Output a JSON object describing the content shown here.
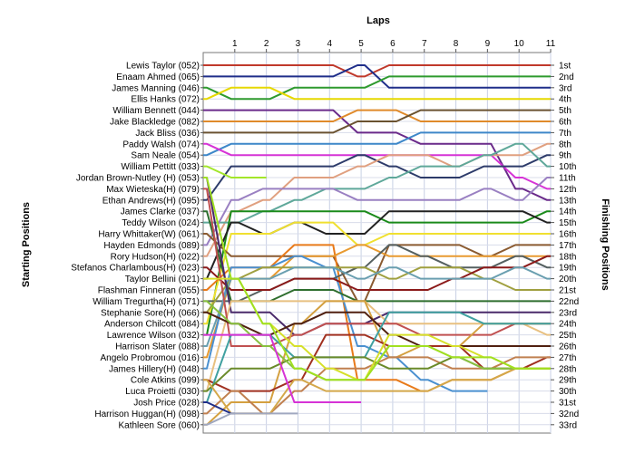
{
  "chart_data": {
    "type": "line",
    "title": "Laps",
    "ylabel_left": "Starting Positions",
    "ylabel_right": "Finishing Positions",
    "x": [
      0,
      1,
      2,
      3,
      4,
      5,
      6,
      7,
      8,
      9,
      10,
      11
    ],
    "x_tick_labels": [
      "1",
      "2",
      "3",
      "4",
      "5",
      "6",
      "7",
      "8",
      "9",
      "10",
      "11"
    ],
    "grid": true,
    "starting_labels": [
      "Lewis Taylor (052)",
      "Enaam Ahmed (065)",
      "James Manning (046)",
      "Ellis Hanks (072)",
      "William Bennett (044)",
      "Jake Blackledge (082)",
      "Jack Bliss (036)",
      "Paddy Walsh (074)",
      "Sam Neale (054)",
      "William Pettitt (033)",
      "Jordan Brown-Nutley (H) (053)",
      "Max Wieteska(H) (079)",
      "Ethan Andrews(H) (095)",
      "James Clarke (037)",
      "Teddy Wilson (024)",
      "Harry Whittaker(W) (061)",
      "Hayden Edmonds (089)",
      "Rory Hudson(H) (022)",
      "Stefanos Charlambous(H) (023)",
      "Taylor Bellini (021)",
      "Flashman Finneran (055)",
      "William Tregurtha(H) (071)",
      "Stephanie Sore(H) (066)",
      "Anderson Chilcott (084)",
      "Lawrence Wilson (032)",
      "Harrison Slater (088)",
      "Angelo Probromou (016)",
      "James Hillery(H) (048)",
      "Cole Atkins (099)",
      "Luca Proietti (030)",
      "Josh Price (028)",
      "Harrison Huggan(H) (098)",
      "Kathleen Sore (060)"
    ],
    "finishing_labels": [
      "1st",
      "2nd",
      "3rd",
      "4th",
      "5th",
      "6th",
      "7th",
      "8th",
      "9th",
      "10th",
      "11th",
      "12th",
      "13th",
      "14th",
      "15th",
      "16th",
      "17th",
      "18th",
      "19th",
      "20th",
      "21st",
      "22nd",
      "23rd",
      "24th",
      "25th",
      "26th",
      "27th",
      "28th",
      "29th",
      "30th",
      "31st",
      "32nd",
      "33rd"
    ],
    "series": [
      {
        "color": "#c0392b",
        "positions": [
          1,
          1,
          1,
          1,
          1,
          2,
          1,
          1,
          1,
          1,
          1,
          1
        ]
      },
      {
        "color": "#1f2e8a",
        "positions": [
          2,
          2,
          2,
          2,
          2,
          1,
          3,
          3,
          3,
          3,
          3,
          3
        ]
      },
      {
        "color": "#2e9a2e",
        "positions": [
          3,
          4,
          4,
          3,
          3,
          3,
          2,
          2,
          2,
          2,
          2,
          2
        ]
      },
      {
        "color": "#e6d800",
        "positions": [
          4,
          3,
          3,
          4,
          4,
          4,
          4,
          4,
          4,
          4,
          4,
          4
        ]
      },
      {
        "color": "#6a2a8a",
        "positions": [
          5,
          5,
          5,
          5,
          5,
          7,
          7,
          8,
          8,
          8,
          12,
          13
        ]
      },
      {
        "color": "#e08a2a",
        "positions": [
          6,
          6,
          6,
          6,
          6,
          5,
          5,
          6,
          6,
          6,
          6,
          6
        ]
      },
      {
        "color": "#6a5230",
        "positions": [
          7,
          7,
          7,
          7,
          7,
          6,
          6,
          5,
          5,
          5,
          5,
          5
        ]
      },
      {
        "color": "#3d87c9",
        "positions": [
          9,
          8,
          8,
          8,
          8,
          8,
          8,
          7,
          7,
          7,
          7,
          7
        ]
      },
      {
        "color": "#d633d6",
        "positions": [
          8,
          9,
          9,
          9,
          9,
          9,
          9,
          9,
          9,
          9,
          11,
          12
        ]
      },
      {
        "color": "#2d3b6a",
        "positions": [
          13,
          10,
          10,
          10,
          10,
          9,
          10,
          11,
          11,
          10,
          10,
          9
        ]
      },
      {
        "color": "#a3e62a",
        "positions": [
          10,
          11,
          11,
          null,
          null,
          null,
          null,
          null,
          null,
          null,
          null,
          null
        ]
      },
      {
        "color": "#e0a080",
        "positions": [
          18,
          14,
          13,
          11,
          11,
          10,
          9,
          9,
          10,
          9,
          9,
          8
        ]
      },
      {
        "color": "#5fa89a",
        "positions": [
          15,
          15,
          14,
          13,
          12,
          12,
          11,
          10,
          10,
          9,
          8,
          10
        ]
      },
      {
        "color": "#9a80c2",
        "positions": [
          17,
          13,
          12,
          12,
          12,
          13,
          13,
          13,
          13,
          12,
          13,
          11
        ]
      },
      {
        "color": "#1a8a1a",
        "positions": [
          25,
          14,
          14,
          14,
          14,
          14,
          15,
          15,
          15,
          15,
          15,
          14
        ]
      },
      {
        "color": "#222222",
        "positions": [
          20,
          15,
          16,
          15,
          16,
          16,
          14,
          14,
          14,
          14,
          14,
          15
        ]
      },
      {
        "color": "#f0e030",
        "positions": [
          24,
          16,
          16,
          15,
          15,
          17,
          16,
          16,
          16,
          16,
          16,
          16
        ]
      },
      {
        "color": "#8a5a30",
        "positions": [
          16,
          18,
          18,
          18,
          18,
          22,
          17,
          17,
          17,
          18,
          17,
          17
        ]
      },
      {
        "color": "#e87a1a",
        "positions": [
          21,
          19,
          19,
          17,
          17,
          29,
          29,
          30,
          29,
          29,
          28,
          28
        ]
      },
      {
        "color": "#e89a30",
        "positions": [
          27,
          20,
          20,
          18,
          18,
          17,
          18,
          18,
          18,
          18,
          18,
          18
        ]
      },
      {
        "color": "#4a90d0",
        "positions": [
          28,
          19,
          19,
          18,
          19,
          26,
          27,
          29,
          30,
          30,
          null,
          null
        ]
      },
      {
        "color": "#556060",
        "positions": [
          22,
          22,
          21,
          20,
          20,
          19,
          17,
          18,
          19,
          19,
          18,
          19
        ]
      },
      {
        "color": "#a0a040",
        "positions": [
          23,
          20,
          19,
          19,
          19,
          19,
          20,
          19,
          19,
          20,
          21,
          21
        ]
      },
      {
        "color": "#8b1a1a",
        "positions": [
          19,
          21,
          21,
          20,
          20,
          21,
          21,
          21,
          20,
          19,
          19,
          18
        ]
      },
      {
        "color": "#6a9fb0",
        "positions": [
          26,
          20,
          20,
          19,
          19,
          20,
          19,
          20,
          20,
          20,
          19,
          20
        ]
      },
      {
        "color": "#2e6e2e",
        "positions": [
          14,
          22,
          22,
          21,
          21,
          22,
          22,
          22,
          22,
          22,
          22,
          22
        ]
      },
      {
        "color": "#4a2a6a",
        "positions": [
          11,
          23,
          23,
          25,
          24,
          24,
          23,
          23,
          23,
          23,
          23,
          23
        ]
      },
      {
        "color": "#e8c080",
        "positions": [
          30,
          22,
          22,
          22,
          22,
          22,
          24,
          24,
          24,
          24,
          24,
          25
        ]
      },
      {
        "color": "#c05050",
        "positions": [
          12,
          26,
          26,
          25,
          24,
          24,
          24,
          25,
          25,
          25,
          24,
          24
        ]
      },
      {
        "color": "#d4a040",
        "positions": [
          33,
          31,
          31,
          24,
          22,
          22,
          27,
          26,
          26,
          24,
          24,
          24
        ]
      },
      {
        "color": "#502010",
        "positions": [
          23,
          24,
          25,
          24,
          23,
          23,
          25,
          26,
          26,
          26,
          26,
          26
        ]
      },
      {
        "color": "#a03020",
        "positions": [
          29,
          30,
          30,
          29,
          25,
          25,
          26,
          26,
          26,
          28,
          28,
          27
        ]
      },
      {
        "color": "#40a0a0",
        "positions": [
          31,
          25,
          25,
          27,
          27,
          27,
          23,
          23,
          23,
          24,
          24,
          24
        ]
      },
      {
        "color": "#c08050",
        "positions": [
          32,
          30,
          32,
          30,
          28,
          28,
          27,
          27,
          28,
          28,
          27,
          27
        ]
      },
      {
        "color": "#6a8a2a",
        "positions": [
          30,
          28,
          28,
          27,
          27,
          27,
          28,
          28,
          27,
          28,
          28,
          28
        ]
      },
      {
        "color": "#d4a84a",
        "positions": [
          29,
          32,
          32,
          29,
          30,
          30,
          30,
          30,
          29,
          29,
          28,
          28
        ]
      },
      {
        "color": "#88c040",
        "positions": [
          22,
          24,
          26,
          28,
          29,
          29,
          26,
          26,
          27,
          28,
          28,
          28
        ]
      },
      {
        "color": "#d6e02a",
        "positions": [
          20,
          20,
          24,
          26,
          28,
          29,
          25,
          25,
          26,
          27,
          28,
          28
        ]
      },
      {
        "color": "#a0e020",
        "positions": [
          11,
          20,
          24,
          28,
          29,
          29,
          26,
          26,
          27,
          27,
          28,
          28
        ]
      },
      {
        "color": "#d633d6",
        "positions": [
          25,
          25,
          25,
          31,
          31,
          31,
          null,
          null,
          null,
          null,
          null,
          null
        ]
      },
      {
        "color": "#1f2e8a",
        "positions": [
          31,
          32,
          null,
          null,
          null,
          null,
          null,
          null,
          null,
          null,
          null,
          null
        ]
      },
      {
        "color": "#a0a8c0",
        "positions": [
          33,
          32,
          32,
          32,
          null,
          null,
          null,
          null,
          null,
          null,
          null,
          null
        ]
      }
    ]
  }
}
